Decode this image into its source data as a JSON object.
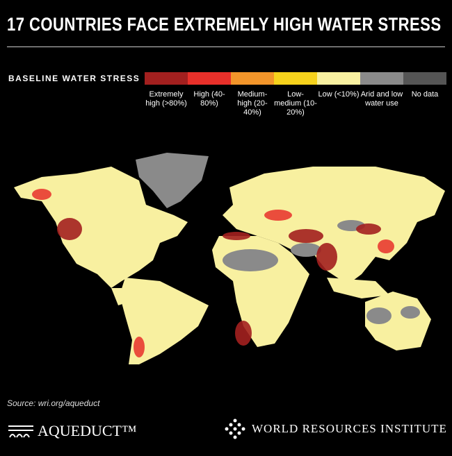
{
  "header": {
    "title": "17 COUNTRIES FACE EXTREMELY HIGH WATER STRESS"
  },
  "legend": {
    "title": "BASELINE WATER STRESS",
    "items": [
      {
        "label": "Extremely high (>80%)",
        "color": "#a3201f"
      },
      {
        "label": "High (40-80%)",
        "color": "#e8302a"
      },
      {
        "label": "Medium-high (20-40%)",
        "color": "#f2952a"
      },
      {
        "label": "Low-medium (10-20%)",
        "color": "#f6d21c"
      },
      {
        "label": "Low (<10%)",
        "color": "#f8f0a0"
      },
      {
        "label": "Arid and low water use",
        "color": "#8a8a8a"
      },
      {
        "label": "No data",
        "color": "#555555"
      }
    ]
  },
  "footer": {
    "source": "Source: wri.org/aqueduct",
    "left_logo": "AQUEDUCT™",
    "right_logo": "WORLD RESOURCES INSTITUTE"
  }
}
